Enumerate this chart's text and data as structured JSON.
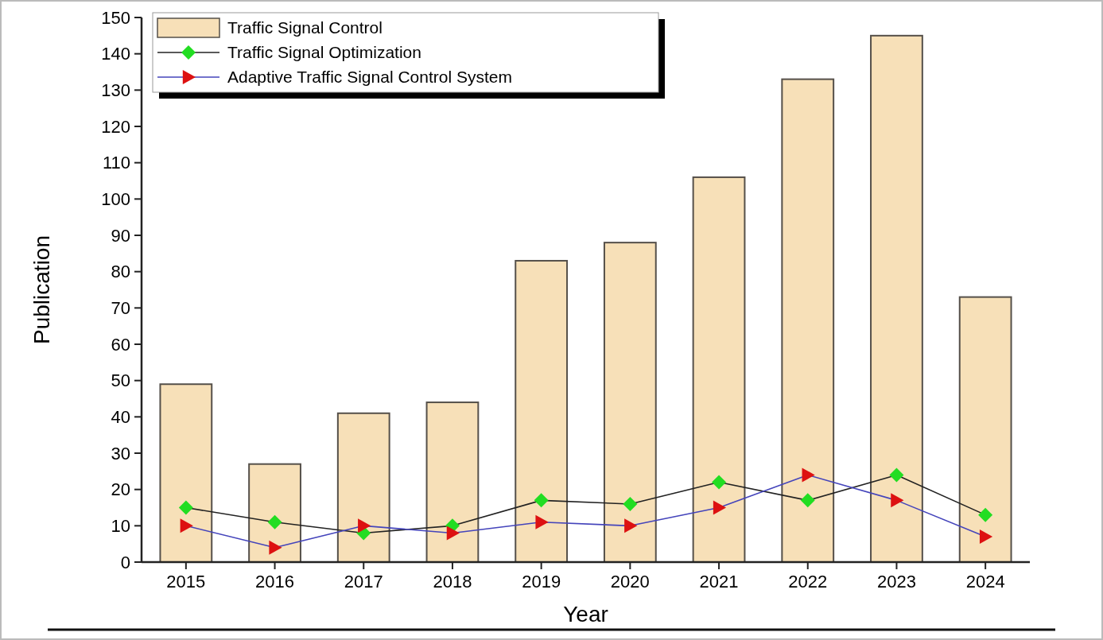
{
  "chart_data": {
    "type": "bar",
    "xlabel": "Year",
    "ylabel": "Publication",
    "categories": [
      "2015",
      "2016",
      "2017",
      "2018",
      "2019",
      "2020",
      "2021",
      "2022",
      "2023",
      "2024"
    ],
    "series": [
      {
        "name": "Traffic Signal Control",
        "color": "#f7e0b8",
        "values": [
          49,
          27,
          41,
          44,
          83,
          88,
          106,
          133,
          145,
          73
        ]
      },
      {
        "name": "Traffic Signal Optimization",
        "type": "line",
        "color": "#222222",
        "marker": "diamond",
        "colors": [
          "#22dd22",
          "#22dd22",
          "#22dd22",
          "#22dd22",
          "#22dd22",
          "#22dd22",
          "#22dd22",
          "#22dd22",
          "#22dd22",
          "#22dd22"
        ],
        "values": [
          15,
          11,
          8,
          10,
          17,
          16,
          22,
          17,
          24,
          13
        ]
      },
      {
        "name": "Adaptive Traffic Signal Control System",
        "type": "line",
        "color": "#4444bb",
        "marker": "triangle",
        "colors": [
          "#dd1111",
          "#dd1111",
          "#dd1111",
          "#dd1111",
          "#dd1111",
          "#dd1111",
          "#dd1111",
          "#dd1111",
          "#dd1111",
          "#dd1111"
        ],
        "values": [
          10,
          4,
          10,
          8,
          11,
          10,
          15,
          24,
          17,
          7
        ]
      }
    ],
    "ylim": [
      0,
      150
    ],
    "yticks": [
      0,
      10,
      20,
      30,
      40,
      50,
      60,
      70,
      80,
      90,
      100,
      110,
      120,
      130,
      140,
      150
    ],
    "grid": false,
    "legend": "top left"
  }
}
